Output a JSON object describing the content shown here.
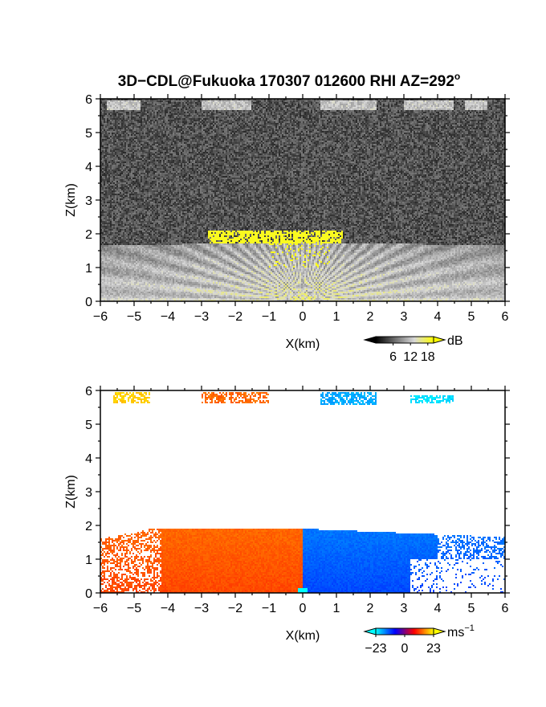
{
  "figure": {
    "title": "3D−CDL@Fukuoka 170307 012600 RHI AZ=292",
    "title_superscript": "o"
  },
  "chart_data": [
    {
      "type": "heatmap",
      "name": "signal-intensity",
      "xlabel": "X(km)",
      "ylabel": "Z(km)",
      "xlim": [
        -6,
        6
      ],
      "ylim": [
        0,
        6
      ],
      "xticks": [
        -6,
        -5,
        -4,
        -3,
        -2,
        -1,
        0,
        1,
        2,
        3,
        4,
        5,
        6
      ],
      "yticks": [
        0,
        1,
        2,
        3,
        4,
        5,
        6
      ],
      "colorbar": {
        "unit": "dB",
        "unit_sup": "",
        "ticks": [
          "6",
          "12",
          "18"
        ],
        "range": [
          0,
          20
        ],
        "colormap": [
          "#000000",
          "#6e6e6e",
          "#d8d8d8",
          "#ffff00"
        ]
      },
      "features": {
        "noise_floor_dB": 5,
        "boundary_layer_top_km": 1.75,
        "yellow_region": {
          "x_range": [
            -2.8,
            1.2
          ],
          "z_range": [
            1.7,
            2.1
          ],
          "value_dB": 19
        },
        "upper_cloud_z_km": 5.8,
        "upper_cloud_x_ranges": [
          [
            -5.8,
            -4.8
          ],
          [
            -3.0,
            -1.5
          ],
          [
            0.5,
            2.2
          ],
          [
            3.0,
            4.5
          ],
          [
            4.8,
            5.5
          ]
        ]
      }
    },
    {
      "type": "heatmap",
      "name": "radial-velocity",
      "xlabel": "X(km)",
      "ylabel": "Z(km)",
      "xlim": [
        -6,
        6
      ],
      "ylim": [
        0,
        6
      ],
      "xticks": [
        -6,
        -5,
        -4,
        -3,
        -2,
        -1,
        0,
        1,
        2,
        3,
        4,
        5,
        6
      ],
      "yticks": [
        0,
        1,
        2,
        3,
        4,
        5,
        6
      ],
      "colorbar": {
        "unit": "ms",
        "unit_sup": "−1",
        "ticks": [
          "−23",
          "0",
          "23"
        ],
        "range": [
          -23,
          23
        ],
        "colormap": [
          "#00ffff",
          "#0000ff",
          "#ff0000",
          "#ffff00"
        ]
      },
      "features": {
        "left_side_velocity_ms": 12,
        "right_side_velocity_ms": -12,
        "boundary_layer_top_km": 1.9,
        "upper_patches": [
          {
            "x_range": [
              -5.6,
              -4.5
            ],
            "z_range": [
              5.6,
              5.95
            ],
            "value_ms": 20
          },
          {
            "x_range": [
              -3.0,
              -1.0
            ],
            "z_range": [
              5.6,
              5.95
            ],
            "value_ms": 14
          },
          {
            "x_range": [
              0.5,
              2.2
            ],
            "z_range": [
              5.55,
              5.95
            ],
            "value_ms": -18
          },
          {
            "x_range": [
              3.2,
              4.5
            ],
            "z_range": [
              5.6,
              5.85
            ],
            "value_ms": -21
          }
        ]
      }
    }
  ]
}
